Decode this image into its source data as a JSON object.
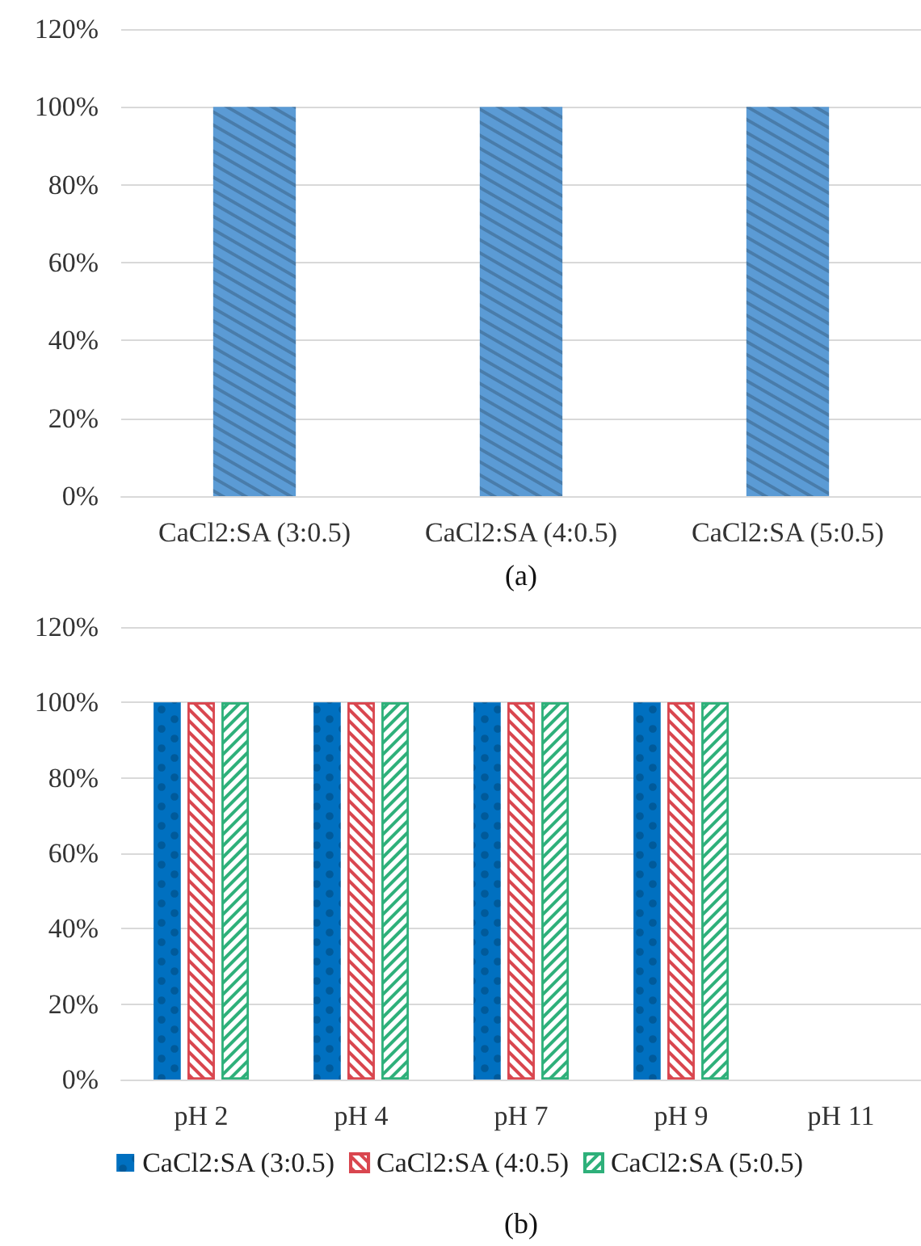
{
  "chart_data": [
    {
      "type": "bar",
      "xlabel": "(a)",
      "categories": [
        "CaCl2:SA (3:0.5)",
        "CaCl2:SA (4:0.5)",
        "CaCl2:SA (5:0.5)"
      ],
      "values": [
        100,
        100,
        100
      ],
      "color": "#5b9bd5",
      "ylim": [
        0,
        120
      ],
      "yticks": [
        {
          "value": 0,
          "label": "0%"
        },
        {
          "value": 20,
          "label": "20%"
        },
        {
          "value": 40,
          "label": "40%"
        },
        {
          "value": 60,
          "label": "60%"
        },
        {
          "value": 80,
          "label": "80%"
        },
        {
          "value": 100,
          "label": "100%"
        },
        {
          "value": 120,
          "label": "120%"
        }
      ],
      "grid": "y",
      "legend": false
    },
    {
      "type": "bar",
      "xlabel": "(b)",
      "categories": [
        "pH 2",
        "pH 4",
        "pH 7",
        "pH 9",
        "pH 11"
      ],
      "series": [
        {
          "name": "CaCl2:SA (3:0.5)",
          "color": "#0070c0",
          "values": [
            100,
            100,
            100,
            100,
            null
          ]
        },
        {
          "name": "CaCl2:SA (4:0.5)",
          "color": "#d9464f",
          "values": [
            100,
            100,
            100,
            100,
            null
          ]
        },
        {
          "name": "CaCl2:SA (5:0.5)",
          "color": "#2eb07a",
          "values": [
            100,
            100,
            100,
            100,
            null
          ]
        }
      ],
      "ylim": [
        0,
        120
      ],
      "yticks": [
        {
          "value": 0,
          "label": "0%"
        },
        {
          "value": 20,
          "label": "20%"
        },
        {
          "value": 40,
          "label": "40%"
        },
        {
          "value": 60,
          "label": "60%"
        },
        {
          "value": 80,
          "label": "80%"
        },
        {
          "value": 100,
          "label": "100%"
        },
        {
          "value": 120,
          "label": "120%"
        }
      ],
      "grid": "y",
      "legend": "bottom"
    }
  ]
}
